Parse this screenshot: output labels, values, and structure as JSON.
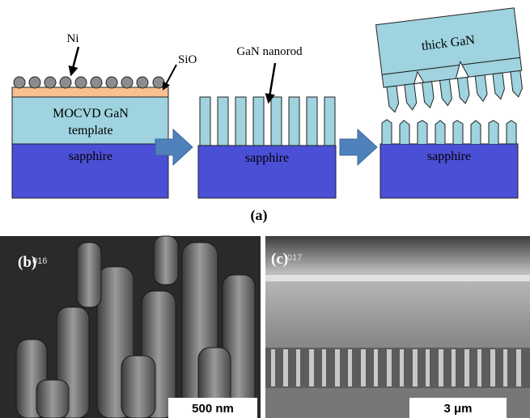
{
  "panel_a": {
    "ni": "Ni",
    "sio": "SiO",
    "template": [
      "MOCVD GaN",
      "template"
    ],
    "sapphire": [
      "sapphire",
      "sapphire",
      "sapphire"
    ],
    "nanorod": "GaN nanorod",
    "thick_gan": "thick GaN",
    "label": "(a)"
  },
  "panel_b": {
    "label": "(b)",
    "code": "016",
    "scale": "500 nm"
  },
  "panel_c": {
    "label": "(c)",
    "code": "017",
    "scale": "3 μm"
  }
}
